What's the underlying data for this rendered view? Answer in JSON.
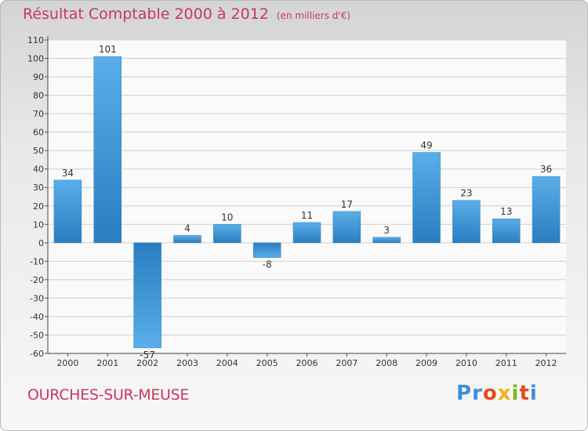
{
  "chart_data": {
    "type": "bar",
    "title": "Résultat Comptable 2000 à 2012",
    "subtitle": "(en milliers d'€)",
    "categories": [
      "2000",
      "2001",
      "2002",
      "2003",
      "2004",
      "2005",
      "2006",
      "2007",
      "2008",
      "2009",
      "2010",
      "2011",
      "2012"
    ],
    "values": [
      34,
      101,
      -57,
      4,
      10,
      -8,
      11,
      17,
      3,
      49,
      23,
      13,
      36
    ],
    "ylim": [
      -60,
      110
    ],
    "yticks": [
      -60,
      -50,
      -40,
      -30,
      -20,
      -10,
      0,
      10,
      20,
      30,
      40,
      50,
      60,
      70,
      80,
      90,
      100,
      110
    ],
    "grid": true,
    "xlabel": "",
    "ylabel": ""
  },
  "footer": {
    "place": "OURCHES-SUR-MEUSE",
    "logo_letters": [
      "P",
      "r",
      "o",
      "x",
      "i",
      "t",
      "i"
    ]
  },
  "colors": {
    "title": "#c8385e",
    "bar_light": "#5aaee8",
    "bar_dark": "#2a7dc0",
    "logo": [
      "#3c8fd6",
      "#3c8fd6",
      "#e84b1f",
      "#f2b21a",
      "#7ab829",
      "#e84b1f",
      "#3c8fd6"
    ]
  }
}
